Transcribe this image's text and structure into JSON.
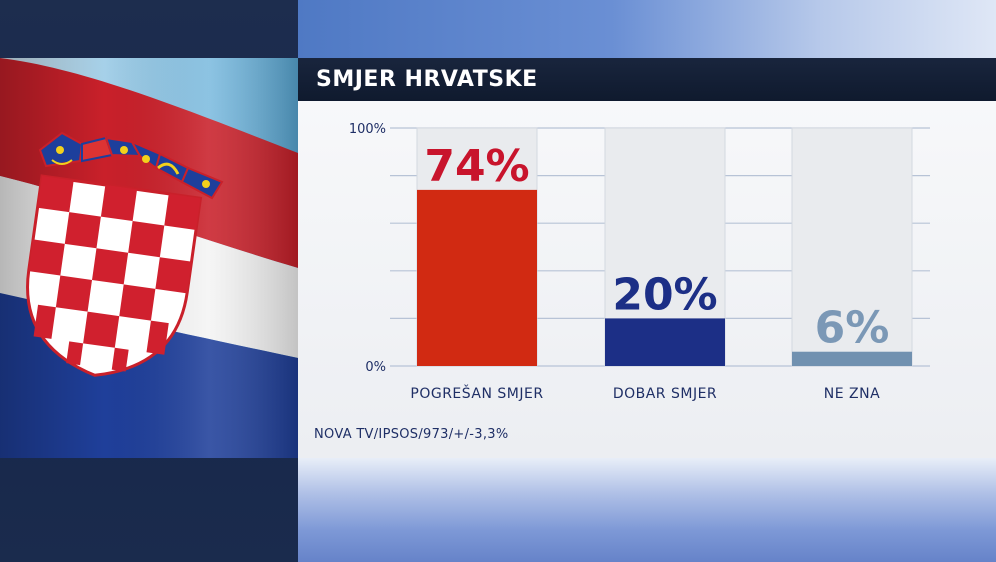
{
  "title": "SMJER HRVATSKE",
  "source": "NOVA TV/IPSOS/973/+/-3,3%",
  "colors": {
    "panel_bg": "#eef0f3",
    "title_bar": "#15213a",
    "bar_pogresan": "#d12a12",
    "bar_dobar": "#1c2f86",
    "bar_ne_zna": "#7191b0",
    "label_pogresan": "#c8142c",
    "label_dobar": "#1c2f86",
    "label_ne_zna": "#7b98b6"
  },
  "chart_data": {
    "type": "bar",
    "categories": [
      "POGREŠAN SMJER",
      "DOBAR SMJER",
      "NE ZNA"
    ],
    "values": [
      74,
      20,
      6
    ],
    "value_labels": [
      "74%",
      "20%",
      "6%"
    ],
    "ylim": [
      0,
      100
    ],
    "y_tick_labels": [
      "100%",
      "0%"
    ],
    "grid": true
  }
}
